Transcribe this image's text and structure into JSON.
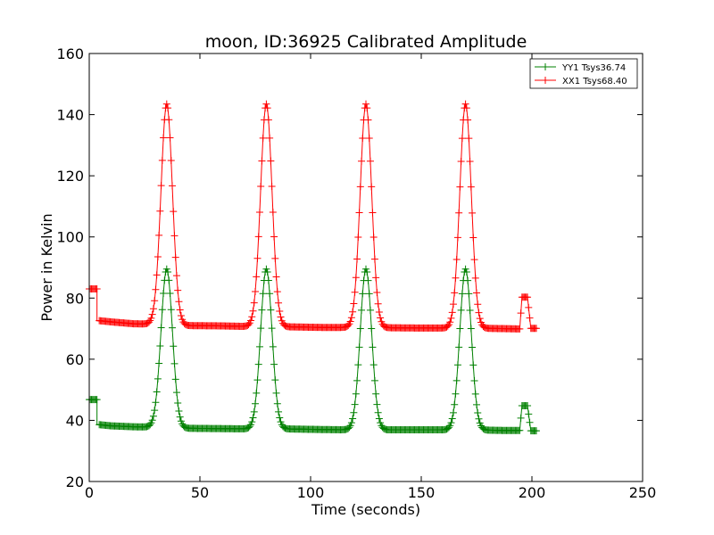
{
  "chart_data": {
    "type": "line",
    "title": "moon, ID:36925 Calibrated Amplitude",
    "xlabel": "Time (seconds)",
    "ylabel": "Power in Kelvin",
    "xlim": [
      0,
      250
    ],
    "ylim": [
      20,
      160
    ],
    "xticks": [
      0,
      50,
      100,
      150,
      200,
      250
    ],
    "yticks": [
      20,
      40,
      60,
      80,
      100,
      120,
      140,
      160
    ],
    "grid": false,
    "legend_position": "top-right",
    "peak_times": [
      35,
      80,
      125,
      170
    ],
    "series": [
      {
        "name": "YY1 Tsys36.74",
        "color": "#008000",
        "marker": "+",
        "start_level": 46.8,
        "baseline": [
          [
            4.5,
            38.6
          ],
          [
            10,
            38.2
          ],
          [
            20,
            37.9
          ],
          [
            28,
            37.8
          ],
          [
            44,
            37.4
          ],
          [
            60,
            37.3
          ],
          [
            72,
            37.2
          ],
          [
            89,
            37.2
          ],
          [
            105,
            37.0
          ],
          [
            117,
            36.9
          ],
          [
            134,
            36.9
          ],
          [
            150,
            36.9
          ],
          [
            162,
            36.9
          ],
          [
            179,
            36.8
          ],
          [
            188,
            36.7
          ],
          [
            194.5,
            36.7
          ]
        ],
        "peak_value": 89.5,
        "end_segment": [
          [
            194.5,
            36.7
          ],
          [
            195.5,
            44.8
          ],
          [
            198,
            44.8
          ],
          [
            199.5,
            36.6
          ],
          [
            202,
            36.6
          ]
        ]
      },
      {
        "name": "XX1 Tsys68.40",
        "color": "#ff0000",
        "marker": "+",
        "start_level": 83.0,
        "baseline": [
          [
            4.5,
            72.6
          ],
          [
            10,
            72.2
          ],
          [
            20,
            71.6
          ],
          [
            28,
            71.5
          ],
          [
            44,
            71.0
          ],
          [
            60,
            70.9
          ],
          [
            72,
            70.7
          ],
          [
            89,
            70.6
          ],
          [
            105,
            70.4
          ],
          [
            117,
            70.4
          ],
          [
            134,
            70.3
          ],
          [
            150,
            70.2
          ],
          [
            162,
            70.2
          ],
          [
            179,
            70.1
          ],
          [
            188,
            70.0
          ],
          [
            194.5,
            69.9
          ]
        ],
        "peak_value": 143.5,
        "end_segment": [
          [
            194.5,
            69.9
          ],
          [
            195.5,
            80.3
          ],
          [
            198,
            80.3
          ],
          [
            199.5,
            70.1
          ],
          [
            202,
            70.1
          ]
        ]
      }
    ]
  }
}
